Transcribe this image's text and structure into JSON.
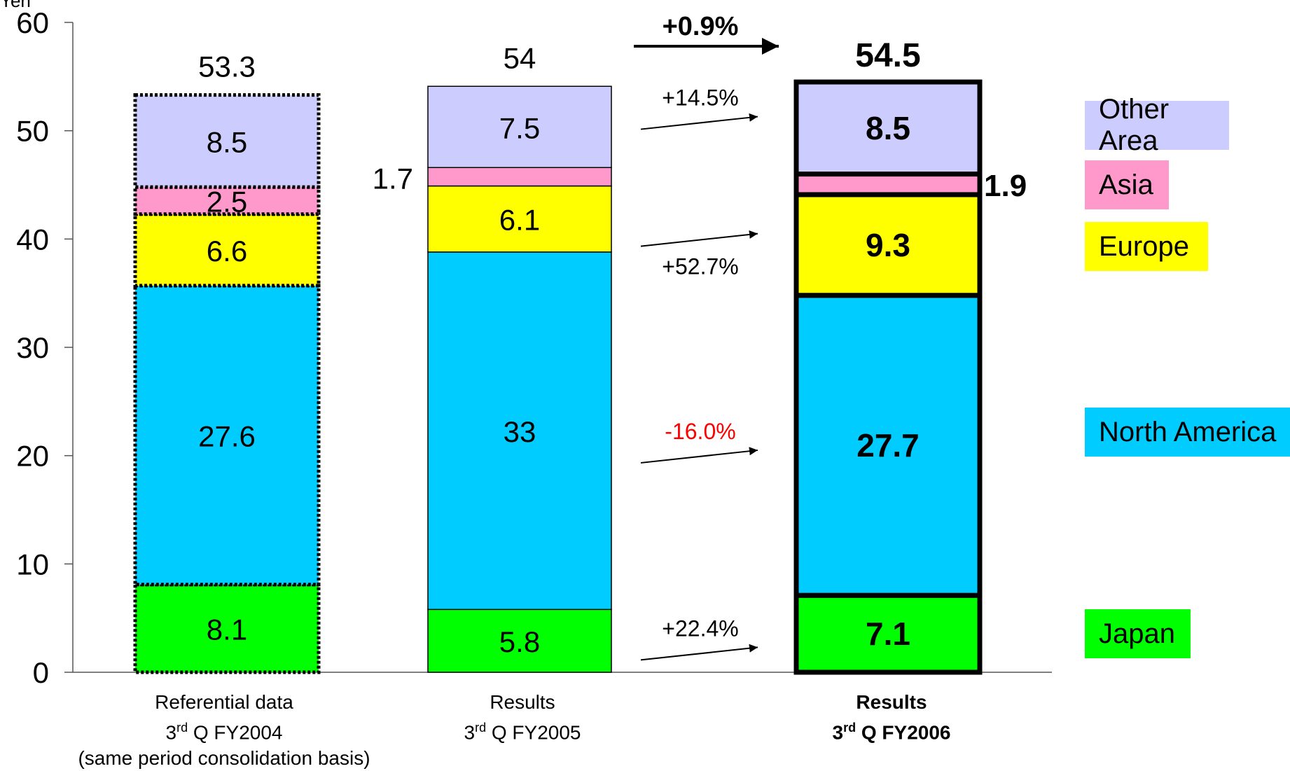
{
  "chart_data": {
    "type": "bar",
    "stacked": true,
    "y_unit_label": "Yen",
    "ylim": [
      0,
      60
    ],
    "yticks": [
      0,
      10,
      20,
      30,
      40,
      50,
      60
    ],
    "categories": [
      {
        "line1": "Referential data",
        "line2_pre": "3",
        "line2_sup": "rd",
        "line2_post": " Q FY2004",
        "line3": "(same period consolidation basis)"
      },
      {
        "line1": "Results",
        "line2_pre": "3",
        "line2_sup": "rd",
        "line2_post": " Q FY2005",
        "line3": ""
      },
      {
        "line1": "Results",
        "line2_pre": "3",
        "line2_sup": "rd",
        "line2_post": " Q FY2006",
        "line3": ""
      }
    ],
    "series": [
      {
        "name": "Japan",
        "color": "#00ff00",
        "values": [
          8.1,
          5.8,
          7.1
        ],
        "labels": [
          "8.1",
          "5.8",
          "7.1"
        ]
      },
      {
        "name": "North America",
        "color": "#00ccff",
        "values": [
          27.6,
          33,
          27.7
        ],
        "labels": [
          "27.6",
          "33",
          "27.7"
        ]
      },
      {
        "name": "Europe",
        "color": "#ffff00",
        "values": [
          6.6,
          6.1,
          9.3
        ],
        "labels": [
          "6.6",
          "6.1",
          "9.3"
        ]
      },
      {
        "name": "Asia",
        "color": "#ff99cc",
        "values": [
          2.5,
          1.7,
          1.9
        ],
        "labels": [
          "2.5",
          "1.7",
          "1.9"
        ]
      },
      {
        "name": "Other Area",
        "color": "#ccccff",
        "values": [
          8.5,
          7.5,
          8.5
        ],
        "labels": [
          "8.5",
          "7.5",
          "8.5"
        ]
      }
    ],
    "totals": [
      "53.3",
      "54",
      "54.5"
    ],
    "changes": [
      {
        "label": "+0.9%",
        "target_value": 57.8,
        "bold": true,
        "color": "#000000"
      },
      {
        "label": "+14.5%",
        "target_value": 51.3,
        "bold": false,
        "color": "#000000"
      },
      {
        "label": "+52.7%",
        "target_value": 40.5,
        "bold": false,
        "color": "#000000"
      },
      {
        "label": "-16.0%",
        "target_value": 20.5,
        "bold": false,
        "color": "#ff0000"
      },
      {
        "label": "+22.4%",
        "target_value": 2.3,
        "bold": false,
        "color": "#000000"
      }
    ]
  }
}
